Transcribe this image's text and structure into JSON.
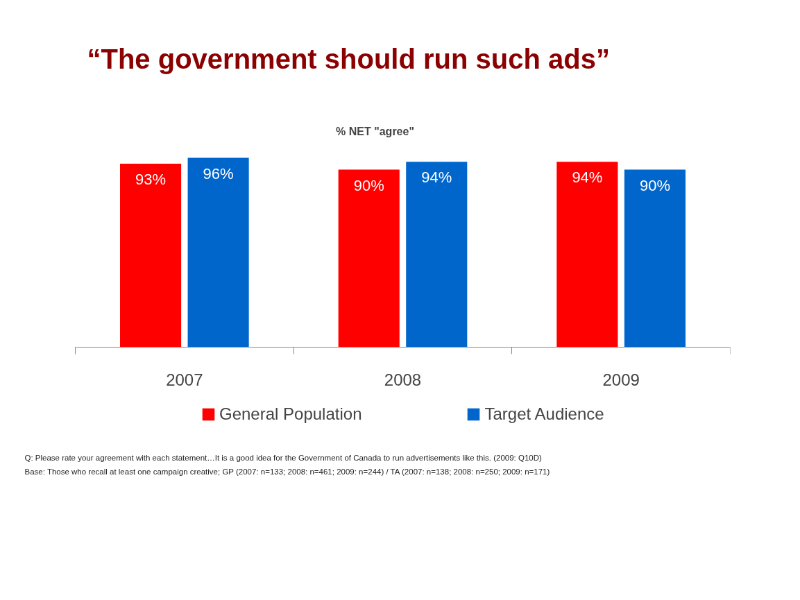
{
  "chart_data": {
    "type": "bar",
    "title": "“The government should run such ads”",
    "subtitle": "% NET \"agree\"",
    "categories": [
      "2007",
      "2008",
      "2009"
    ],
    "series": [
      {
        "name": "General Population",
        "color": "#ff0000",
        "values": [
          93,
          90,
          94
        ],
        "value_labels": [
          "93%",
          "90%",
          "94%"
        ]
      },
      {
        "name": "Target Audience",
        "color": "#0066cc",
        "values": [
          96,
          94,
          90
        ],
        "value_labels": [
          "96%",
          "94%",
          "90%"
        ]
      }
    ],
    "grid": false,
    "legend": "bottom",
    "annotations": [
      "Q: Please rate your agreement with each statement…It is a good idea for the Government of Canada to run advertisements like this. (2009: Q10D)",
      "Base: Those who recall at least one campaign creative; GP (2007: n=133; 2008: n=461; 2009: n=244) / TA (2007: n=138; 2008: n=250; 2009: n=171)"
    ]
  }
}
